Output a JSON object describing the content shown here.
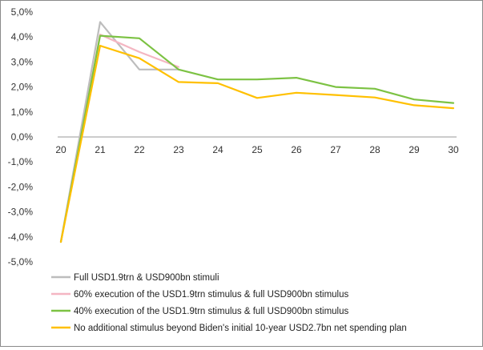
{
  "chart_data": {
    "type": "line",
    "title": "",
    "xlabel": "",
    "ylabel": "",
    "x": [
      "20",
      "21",
      "22",
      "23",
      "24",
      "25",
      "26",
      "27",
      "28",
      "29",
      "30"
    ],
    "ylim": [
      -0.05,
      0.05
    ],
    "yticks": [
      {
        "value": 0.05,
        "label": "5,0%"
      },
      {
        "value": 0.04,
        "label": "4,0%"
      },
      {
        "value": 0.03,
        "label": "3,0%"
      },
      {
        "value": 0.02,
        "label": "2,0%"
      },
      {
        "value": 0.01,
        "label": "1,0%"
      },
      {
        "value": 0.0,
        "label": "0,0%"
      },
      {
        "value": -0.01,
        "label": "-1,0%"
      },
      {
        "value": -0.02,
        "label": "-2,0%"
      },
      {
        "value": -0.03,
        "label": "-3,0%"
      },
      {
        "value": -0.04,
        "label": "-4,0%"
      },
      {
        "value": -0.05,
        "label": "-5,0%"
      }
    ],
    "grid": false,
    "legend_position": "bottom",
    "series": [
      {
        "name": "Full USD1.9trn & USD900bn stimuli",
        "color": "#bdbdbd",
        "values": [
          -0.042,
          0.046,
          0.027,
          0.027,
          null,
          null,
          null,
          null,
          null,
          null,
          null
        ]
      },
      {
        "name": "60% execution of the USD1.9trn stimulus & full USD900bn stimulus",
        "color": "#f4b6c2",
        "values": [
          -0.042,
          0.041,
          0.034,
          0.028,
          null,
          null,
          null,
          null,
          null,
          null,
          null
        ]
      },
      {
        "name": "40% execution of the USD1.9trn stimulus & full USD900bn stimulus",
        "color": "#7cc243",
        "values": [
          -0.042,
          0.0405,
          0.0395,
          0.027,
          0.023,
          0.023,
          0.0237,
          0.02,
          0.0193,
          0.015,
          0.0136
        ]
      },
      {
        "name": "No additional stimulus beyond Biden's initial 10-year USD2.7bn net spending plan",
        "color": "#ffc000",
        "values": [
          -0.042,
          0.0365,
          0.0315,
          0.022,
          0.0215,
          0.0156,
          0.0177,
          0.0168,
          0.0158,
          0.0127,
          0.0115
        ]
      }
    ]
  }
}
